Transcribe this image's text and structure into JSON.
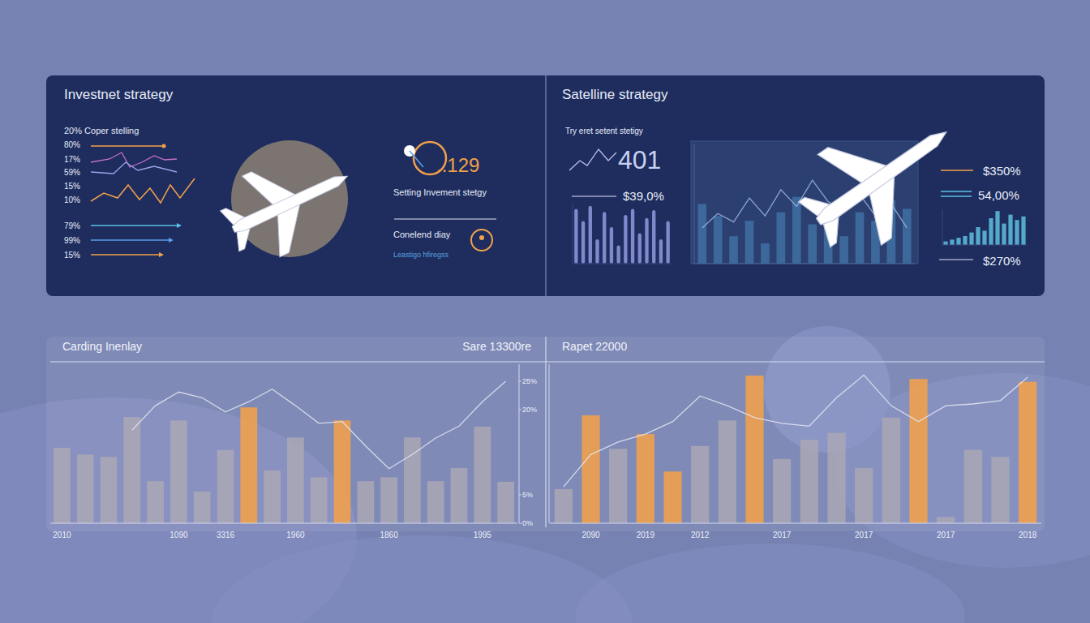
{
  "panels": {
    "investment": {
      "title": "Investnet strategy",
      "list_header": "20% Coper stelling",
      "levels": [
        "80%",
        "17%",
        "59%",
        "15%",
        "10%"
      ],
      "levels_2": [
        "79%",
        "99%",
        "15%"
      ],
      "metric": "..129",
      "metric_caption": "Setting Invement stetgy",
      "note": "Conelend diay",
      "note_sub": "Leastigo hfiregss"
    },
    "satellite": {
      "title": "Satelline strategy",
      "subtitle": "Try eret setent stetigy",
      "big_number": "401",
      "value_1": "$39,0%",
      "side_values": [
        "$350%",
        "54,00%",
        "$270%"
      ]
    }
  },
  "chart_data": [
    {
      "type": "bar",
      "title": "Carding Inenlay",
      "subtitle": "Sare 13300re",
      "categories": [
        "2010",
        null,
        null,
        null,
        null,
        "1090",
        null,
        "3316",
        null,
        null,
        "1960",
        null,
        null,
        null,
        "1860",
        null,
        null,
        null,
        "1995",
        null
      ],
      "series": [
        {
          "type": "bar",
          "colors": [
            "#aaa6b6",
            "#aaa6b6",
            "#aaa6b6",
            "#aaa6b6",
            "#aaa6b6",
            "#aaa6b6",
            "#aaa6b6",
            "#aaa6b6",
            "#f2a04a",
            "#aaa6b6",
            "#aaa6b6",
            "#aaa6b6",
            "#f2a04a",
            "#aaa6b6",
            "#aaa6b6",
            "#aaa6b6",
            "#aaa6b6",
            "#aaa6b6",
            "#aaa6b6",
            "#aaa6b6"
          ],
          "values": [
            13.3,
            12.1,
            11.7,
            18.7,
            7.4,
            18.1,
            5.6,
            12.9,
            20.4,
            9.3,
            15.1,
            8.1,
            18.1,
            7.4,
            8.1,
            15.1,
            7.4,
            9.7,
            17.0,
            7.3
          ]
        },
        {
          "type": "line",
          "color": "#e4e6f4",
          "values": [
            null,
            null,
            null,
            16.4,
            20.7,
            23.1,
            22.1,
            19.6,
            21.4,
            23.6,
            20.7,
            17.6,
            17.9,
            13.6,
            9.6,
            12.1,
            15.0,
            17.1,
            21.4,
            25.0
          ]
        }
      ],
      "ylim": [
        0,
        28
      ],
      "yticks": [
        {
          "value": 0,
          "label": "0%"
        },
        {
          "value": 5,
          "label": "5%"
        },
        {
          "value": 20,
          "label": "20%"
        },
        {
          "value": 25,
          "label": "25%"
        }
      ],
      "grid": false
    },
    {
      "type": "bar",
      "title": "Rapet 22000",
      "categories": [
        null,
        "2090",
        null,
        "2019",
        null,
        "2012",
        null,
        null,
        "2017",
        null,
        null,
        "2017",
        null,
        null,
        "2017",
        null,
        null,
        "2018"
      ],
      "series": [
        {
          "type": "bar",
          "colors": [
            "#aaa6b6",
            "#f2a04a",
            "#aaa6b6",
            "#f2a04a",
            "#f2a04a",
            "#aaa6b6",
            "#aaa6b6",
            "#f2a04a",
            "#aaa6b6",
            "#aaa6b6",
            "#aaa6b6",
            "#aaa6b6",
            "#aaa6b6",
            "#f2a04a",
            "#aaa6b6",
            "#aaa6b6",
            "#aaa6b6",
            "#f2a04a"
          ],
          "values": [
            6.0,
            19.0,
            13.1,
            15.7,
            9.1,
            13.6,
            18.1,
            26.0,
            11.3,
            14.7,
            15.9,
            9.7,
            18.6,
            25.4,
            1.1,
            12.9,
            11.7,
            24.9
          ]
        },
        {
          "type": "line",
          "color": "#e4e6f4",
          "values": [
            6.4,
            12.1,
            14.3,
            15.7,
            17.9,
            22.4,
            20.7,
            18.6,
            17.6,
            17.1,
            22.1,
            26.1,
            20.7,
            17.9,
            20.7,
            21.0,
            21.6,
            25.7
          ]
        }
      ],
      "ylim": [
        0,
        28
      ],
      "tick_labels": "x",
      "grid": false
    },
    {
      "type": "bar",
      "series": [
        {
          "type": "bar",
          "color": "#3d6a9e",
          "values": [
            50,
            40,
            23,
            36,
            17,
            43,
            56,
            33,
            40,
            23,
            43,
            36,
            53,
            46
          ]
        },
        {
          "type": "line",
          "color": "#9fb6e2",
          "values": [
            30,
            42,
            35,
            55,
            40,
            62,
            48,
            70,
            52,
            45,
            58,
            40,
            50,
            30
          ]
        }
      ],
      "ylim": [
        0,
        100
      ],
      "tick_labels": false,
      "grid": false
    },
    {
      "type": "bar",
      "color": "#8a93d8",
      "values": [
        90,
        70,
        95,
        40,
        85,
        60,
        30,
        80,
        90,
        50,
        75,
        88,
        40,
        70
      ],
      "ylim": [
        0,
        100
      ],
      "tick_labels": false,
      "grid": false
    },
    {
      "type": "bar",
      "color": "#5bb8d8",
      "values": [
        10,
        15,
        20,
        25,
        35,
        50,
        40,
        75,
        95,
        60,
        85,
        70,
        80
      ],
      "ylim": [
        0,
        100
      ],
      "tick_labels": false,
      "grid": false
    }
  ]
}
